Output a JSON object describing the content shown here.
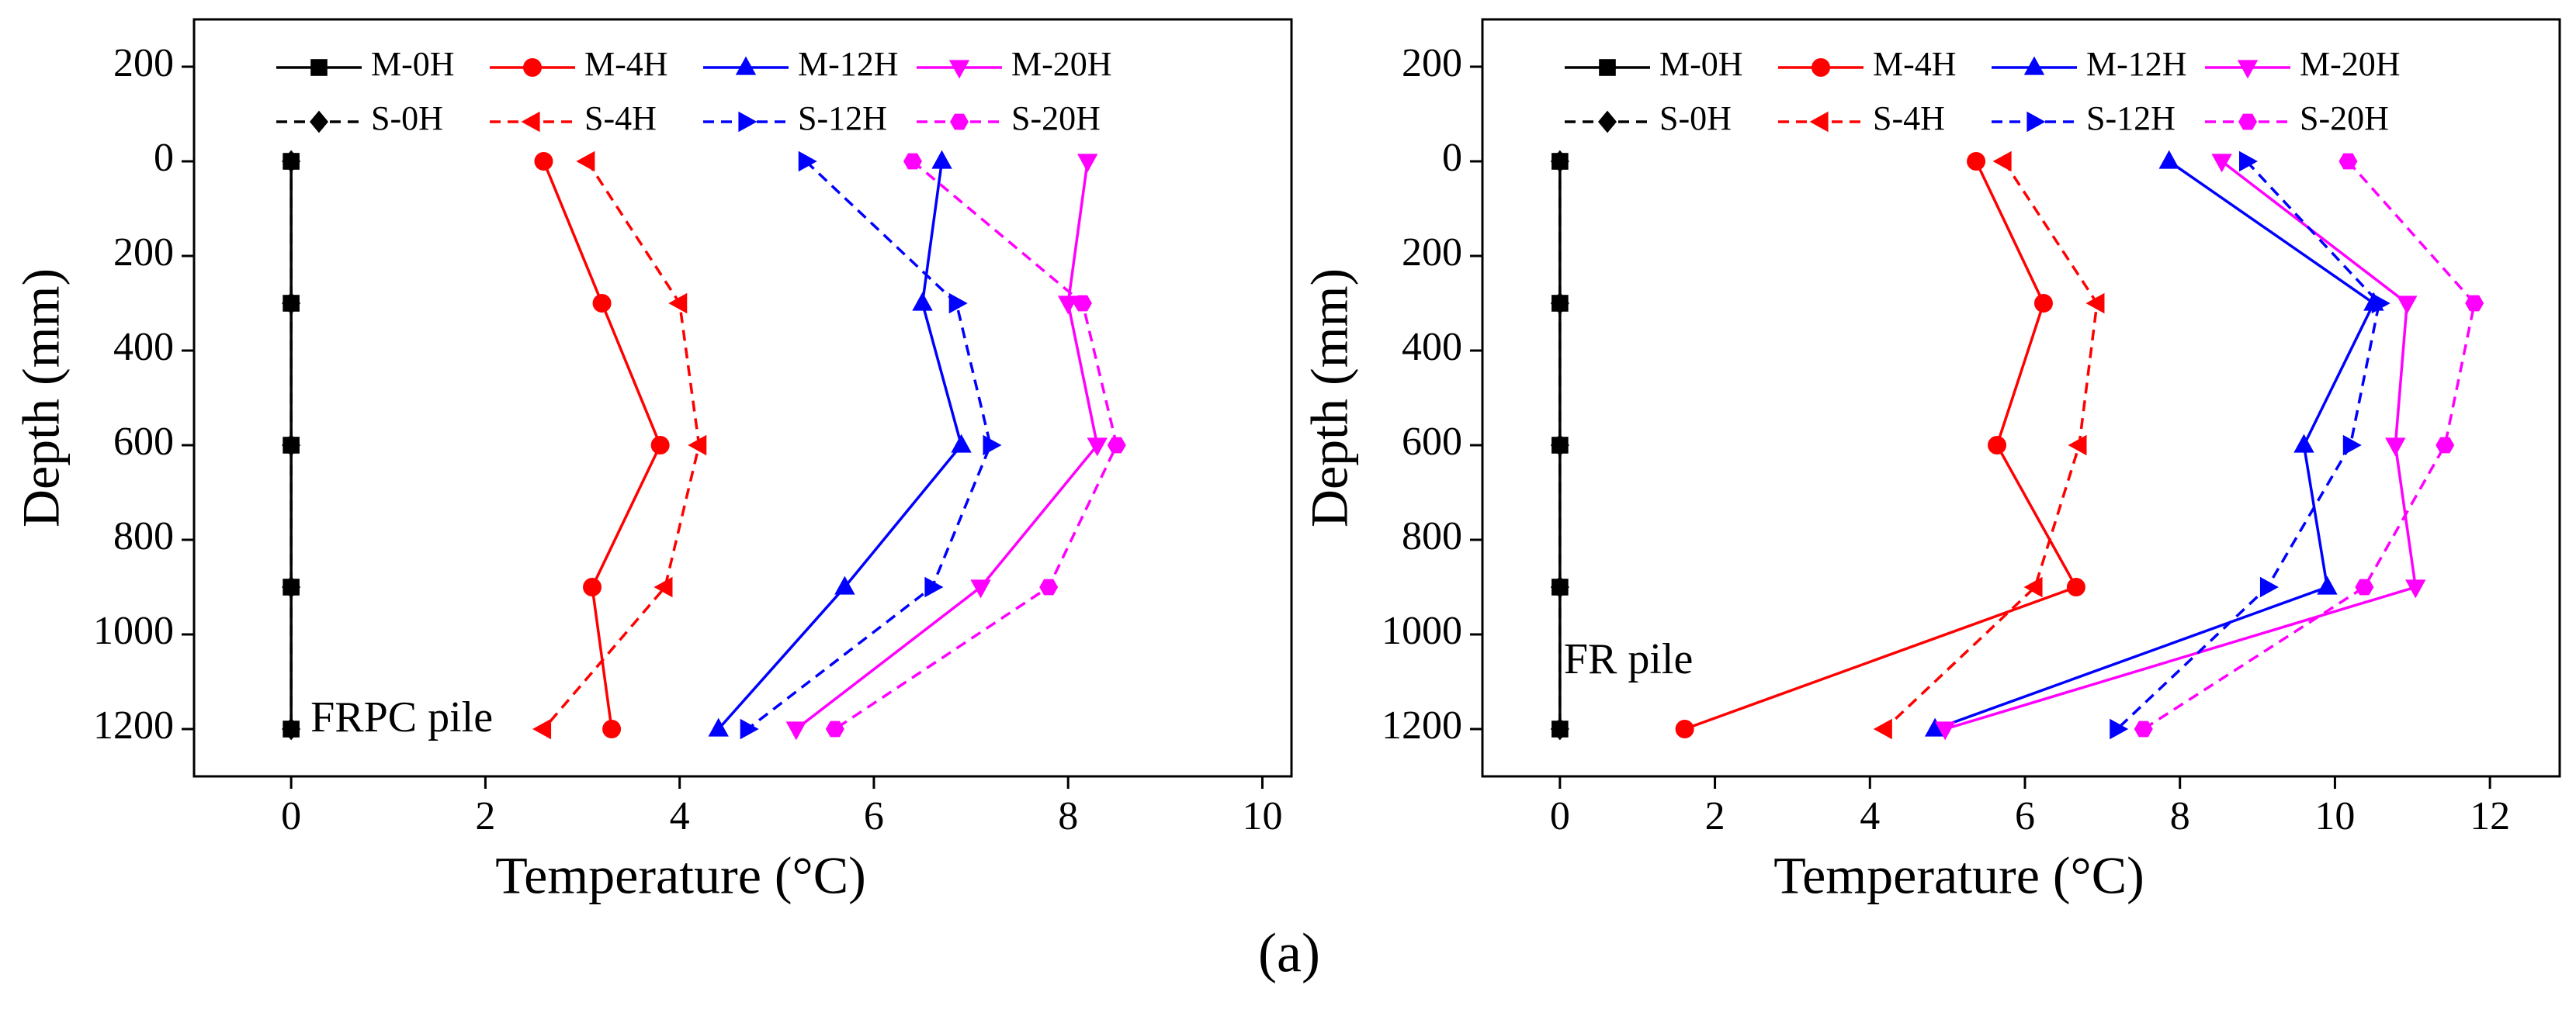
{
  "chart_data": [
    {
      "type": "line",
      "annotation": "FRPC pile",
      "xlabel": "Temperature (°C)",
      "ylabel": "Depth (mm)",
      "xlim": [
        -1,
        10.3
      ],
      "xticks": [
        0,
        2,
        4,
        6,
        8,
        10
      ],
      "ylim": [
        -300,
        1300
      ],
      "y_reversed": true,
      "yticks": [
        {
          "value": -200,
          "label": "200"
        },
        0,
        200,
        400,
        600,
        800,
        1000,
        1200
      ],
      "y": [
        0,
        300,
        600,
        900,
        1200
      ],
      "series": [
        {
          "name": "M-0H",
          "color": "#000000",
          "marker": "square",
          "dashed": false,
          "x": [
            0,
            0,
            0,
            0,
            0
          ]
        },
        {
          "name": "M-4H",
          "color": "#ff0000",
          "marker": "circle",
          "dashed": false,
          "x": [
            2.6,
            3.2,
            3.8,
            3.1,
            3.3
          ]
        },
        {
          "name": "M-12H",
          "color": "#0000ff",
          "marker": "triangle-up",
          "dashed": false,
          "x": [
            6.7,
            6.5,
            6.9,
            5.7,
            4.4
          ]
        },
        {
          "name": "M-20H",
          "color": "#ff00ff",
          "marker": "triangle-down",
          "dashed": false,
          "x": [
            8.2,
            8.0,
            8.3,
            7.1,
            5.2
          ]
        },
        {
          "name": "S-0H",
          "color": "#000000",
          "marker": "diamond",
          "dashed": true,
          "x": [
            0,
            0,
            0,
            0,
            0
          ]
        },
        {
          "name": "S-4H",
          "color": "#ff0000",
          "marker": "triangle-left",
          "dashed": true,
          "x": [
            3.05,
            4.0,
            4.2,
            3.85,
            2.6
          ]
        },
        {
          "name": "S-12H",
          "color": "#0000ff",
          "marker": "triangle-right",
          "dashed": true,
          "x": [
            5.3,
            6.85,
            7.2,
            6.6,
            4.7
          ]
        },
        {
          "name": "S-20H",
          "color": "#ff00ff",
          "marker": "hexagon",
          "dashed": true,
          "x": [
            6.4,
            8.15,
            8.5,
            7.8,
            5.6
          ]
        }
      ]
    },
    {
      "type": "line",
      "annotation": "FR pile",
      "xlabel": "Temperature (°C)",
      "ylabel": "Depth (mm)",
      "xlim": [
        -1,
        12.9
      ],
      "xticks": [
        0,
        2,
        4,
        6,
        8,
        10,
        12
      ],
      "ylim": [
        -300,
        1300
      ],
      "y_reversed": true,
      "yticks": [
        {
          "value": -200,
          "label": "200"
        },
        0,
        200,
        400,
        600,
        800,
        1000,
        1200
      ],
      "y": [
        0,
        300,
        600,
        900,
        1200
      ],
      "series": [
        {
          "name": "M-0H",
          "color": "#000000",
          "marker": "square",
          "dashed": false,
          "x": [
            0,
            0,
            0,
            0,
            0
          ]
        },
        {
          "name": "M-4H",
          "color": "#ff0000",
          "marker": "circle",
          "dashed": false,
          "x": [
            5.37,
            6.24,
            5.64,
            6.66,
            1.61
          ]
        },
        {
          "name": "M-12H",
          "color": "#0000ff",
          "marker": "triangle-up",
          "dashed": false,
          "x": [
            7.86,
            10.5,
            9.6,
            9.9,
            4.84
          ]
        },
        {
          "name": "M-20H",
          "color": "#ff00ff",
          "marker": "triangle-down",
          "dashed": false,
          "x": [
            8.54,
            10.93,
            10.78,
            11.04,
            4.97
          ]
        },
        {
          "name": "S-0H",
          "color": "#000000",
          "marker": "diamond",
          "dashed": true,
          "x": [
            0,
            0,
            0,
            0,
            0
          ]
        },
        {
          "name": "S-4H",
          "color": "#ff0000",
          "marker": "triangle-left",
          "dashed": true,
          "x": [
            5.73,
            6.93,
            6.7,
            6.13,
            4.19
          ]
        },
        {
          "name": "S-12H",
          "color": "#0000ff",
          "marker": "triangle-right",
          "dashed": true,
          "x": [
            8.86,
            10.57,
            10.2,
            9.13,
            7.19
          ]
        },
        {
          "name": "S-20H",
          "color": "#ff00ff",
          "marker": "hexagon",
          "dashed": true,
          "x": [
            10.17,
            11.8,
            11.42,
            10.38,
            7.53
          ]
        }
      ]
    }
  ],
  "caption": "(a)"
}
